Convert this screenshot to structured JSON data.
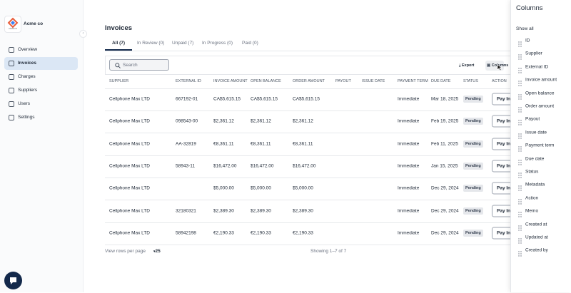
{
  "sidebar": {
    "company": "Acme co",
    "logo_text": "ACME CO",
    "nav": [
      "Overview",
      "Invoices",
      "Charges",
      "Suppliers",
      "Users",
      "Settings"
    ]
  },
  "header": {
    "title": "Invoices"
  },
  "tabs": [
    "All (7)",
    "In Review (0)",
    "Unpaid (7)",
    "In Progress (0)",
    "Paid (0)"
  ],
  "toolbar": {
    "search_placeholder": "Search",
    "export": "Export",
    "columns": "Columns"
  },
  "table": {
    "headers": [
      "SUPPLIER",
      "EXTERNAL ID",
      "INVOICE AMOUNT",
      "OPEN BALANCE",
      "ORDER AMOUNT",
      "PAYOUT",
      "ISSUE DATE",
      "PAYMENT TERM",
      "DUE DATE",
      "STATUS",
      "ACTION"
    ],
    "rows": [
      {
        "supplier": "Cellphone Max LTD",
        "external_id": "667192-01",
        "invoice_amount": "CA$5,615.15",
        "open_balance": "CA$5,615.15",
        "order_amount": "CA$5,615.15",
        "payment_term": "Immediate",
        "due_date": "Mar 18, 2025",
        "status": "Pending",
        "action": "Pay Invoice"
      },
      {
        "supplier": "Cellphone Max LTD",
        "external_id": "098543-00",
        "invoice_amount": "$2,361.12",
        "open_balance": "$2,361.12",
        "order_amount": "$2,361.12",
        "payment_term": "Immediate",
        "due_date": "Feb 19, 2025",
        "status": "Pending",
        "action": "Pay Invoice"
      },
      {
        "supplier": "Cellphone Max LTD",
        "external_id": "AA-32819",
        "invoice_amount": "€8,361.11",
        "open_balance": "€8,361.11",
        "order_amount": "€8,361.11",
        "payment_term": "Immediate",
        "due_date": "Feb 11, 2025",
        "status": "Pending",
        "action": "Pay Invoice"
      },
      {
        "supplier": "Cellphone Max LTD",
        "external_id": "58943-11",
        "invoice_amount": "$16,472.00",
        "open_balance": "$16,472.00",
        "order_amount": "$16,472.00",
        "payment_term": "Immediate",
        "due_date": "Jan 15, 2025",
        "status": "Pending",
        "action": "Pay Invoice"
      },
      {
        "supplier": "Cellphone Max LTD",
        "invoice_amount": "$5,000.00",
        "open_balance": "$5,000.00",
        "order_amount": "$5,000.00",
        "payment_term": "Immediate",
        "due_date": "Dec 29, 2024",
        "status": "Pending",
        "action": "Pay Invoice"
      },
      {
        "supplier": "Cellphone Max LTD",
        "external_id": "32180321",
        "invoice_amount": "$2,389.30",
        "open_balance": "$2,389.30",
        "order_amount": "$2,389.30",
        "payment_term": "Immediate",
        "due_date": "Dec 29, 2024",
        "status": "Pending",
        "action": "Pay Invoice"
      },
      {
        "supplier": "Cellphone Max LTD",
        "external_id": "58942198",
        "invoice_amount": "€2,190.33",
        "open_balance": "€2,190.33",
        "order_amount": "€2,190.33",
        "payment_term": "Immediate",
        "due_date": "Dec 29, 2024",
        "status": "Pending",
        "action": "Pay Invoice"
      }
    ]
  },
  "footer": {
    "rows_per_page_label": "View rows per page",
    "rows_per_page": "25",
    "showing": "Showing 1–7 of 7"
  },
  "columns_panel": {
    "title": "Columns",
    "show_all": "Show all",
    "items": [
      "ID",
      "Supplier",
      "External ID",
      "Invoice amount",
      "Open balance",
      "Order amount",
      "Payout",
      "Issue date",
      "Payment term",
      "Due date",
      "Status",
      "Metadata",
      "Action",
      "Memo",
      "Created at",
      "Updated at",
      "Created by"
    ]
  }
}
